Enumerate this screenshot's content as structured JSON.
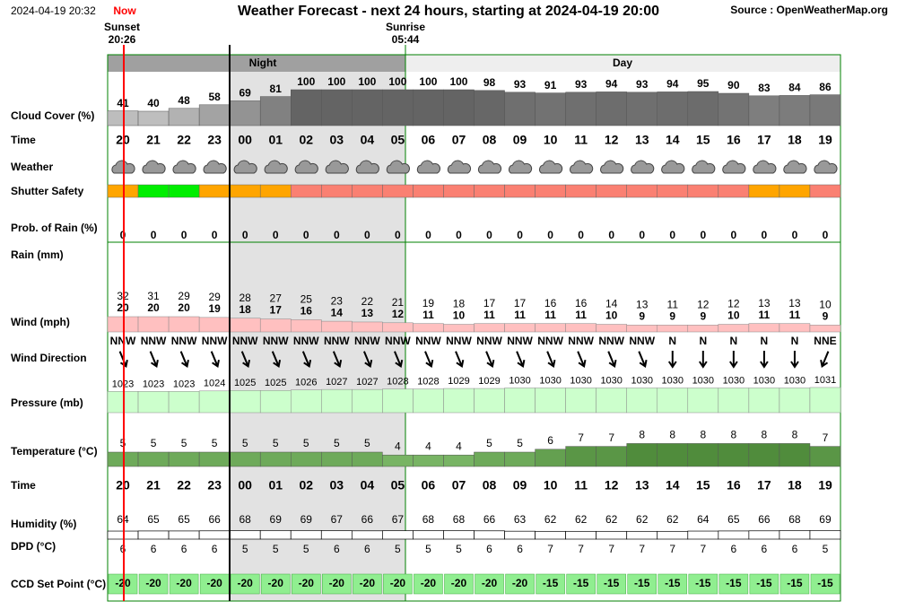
{
  "header": {
    "datetime": "2024-04-19 20:32",
    "now": "Now",
    "title": "Weather Forecast - next 24 hours, starting at 2024-04-19 20:00",
    "source": "Source : OpenWeatherMap.org",
    "sunset": "Sunset",
    "sunset_time": "20:26",
    "sunrise": "Sunrise",
    "sunrise_time": "05:44",
    "night": "Night",
    "day": "Day"
  },
  "labels": {
    "cloud_cover": "Cloud Cover (%)",
    "time": "Time",
    "weather": "Weather",
    "shutter_safety": "Shutter Safety",
    "rain_probability": "Prob. of Rain (%)",
    "rain": "Rain (mm)",
    "wind": "Wind (mph)",
    "wind_direction": "Wind Direction",
    "pressure": "Pressure (mb)",
    "temperature": "Temperature (°C)",
    "time2": "Time",
    "humidity": "Humidity (%)",
    "dpd": "DPD (°C)",
    "ccd_set_point": "CCD Set Point (°C)"
  },
  "hours": [
    "20",
    "21",
    "22",
    "23",
    "00",
    "01",
    "02",
    "03",
    "04",
    "05",
    "06",
    "07",
    "08",
    "09",
    "10",
    "11",
    "12",
    "13",
    "14",
    "15",
    "16",
    "17",
    "18",
    "19"
  ],
  "cloud_cover": [
    41,
    40,
    48,
    58,
    69,
    81,
    100,
    100,
    100,
    100,
    100,
    100,
    98,
    93,
    91,
    93,
    94,
    93,
    94,
    95,
    90,
    83,
    84,
    86
  ],
  "shutter_safety": [
    "#ffa500",
    "#00ee00",
    "#00ee00",
    "#ffa500",
    "#ffa500",
    "#ffa500",
    "#fa8072",
    "#fa8072",
    "#fa8072",
    "#fa8072",
    "#fa8072",
    "#fa8072",
    "#fa8072",
    "#fa8072",
    "#fa8072",
    "#fa8072",
    "#fa8072",
    "#fa8072",
    "#fa8072",
    "#fa8072",
    "#fa8072",
    "#ffa500",
    "#ffa500",
    "#fa8072"
  ],
  "rain_probability": [
    0,
    0,
    0,
    0,
    0,
    0,
    0,
    0,
    0,
    0,
    0,
    0,
    0,
    0,
    0,
    0,
    0,
    0,
    0,
    0,
    0,
    0,
    0,
    0
  ],
  "wind_gust": [
    32,
    31,
    29,
    29,
    28,
    27,
    25,
    23,
    22,
    21,
    19,
    18,
    17,
    17,
    16,
    16,
    14,
    13,
    11,
    12,
    12,
    13,
    13,
    10
  ],
  "wind_speed": [
    20,
    20,
    20,
    19,
    18,
    17,
    16,
    14,
    13,
    12,
    11,
    10,
    11,
    11,
    11,
    11,
    10,
    9,
    9,
    9,
    10,
    11,
    11,
    9
  ],
  "wind_direction": [
    "NNW",
    "NNW",
    "NNW",
    "NNW",
    "NNW",
    "NNW",
    "NNW",
    "NNW",
    "NNW",
    "NNW",
    "NNW",
    "NNW",
    "NNW",
    "NNW",
    "NNW",
    "NNW",
    "NNW",
    "NNW",
    "N",
    "N",
    "N",
    "N",
    "N",
    "NNE"
  ],
  "pressure": [
    1023,
    1023,
    1023,
    1024,
    1025,
    1025,
    1026,
    1027,
    1027,
    1028,
    1028,
    1029,
    1029,
    1030,
    1030,
    1030,
    1030,
    1030,
    1030,
    1030,
    1030,
    1030,
    1030,
    1031
  ],
  "temperature": [
    5,
    5,
    5,
    5,
    5,
    5,
    5,
    5,
    5,
    4,
    4,
    4,
    5,
    5,
    6,
    7,
    7,
    8,
    8,
    8,
    8,
    8,
    8,
    7
  ],
  "humidity": [
    64,
    65,
    65,
    66,
    68,
    69,
    69,
    67,
    66,
    67,
    68,
    68,
    66,
    63,
    62,
    62,
    62,
    62,
    62,
    64,
    65,
    66,
    68,
    69
  ],
  "dpd": [
    6,
    6,
    6,
    6,
    5,
    5,
    5,
    6,
    6,
    5,
    5,
    5,
    6,
    6,
    7,
    7,
    7,
    7,
    7,
    7,
    6,
    6,
    6,
    5
  ],
  "ccd_set_point": [
    -20,
    -20,
    -20,
    -20,
    -20,
    -20,
    -20,
    -20,
    -20,
    -20,
    -20,
    -20,
    -20,
    -20,
    -15,
    -15,
    -15,
    -15,
    -15,
    -15,
    -15,
    -15,
    -15,
    -15
  ]
}
